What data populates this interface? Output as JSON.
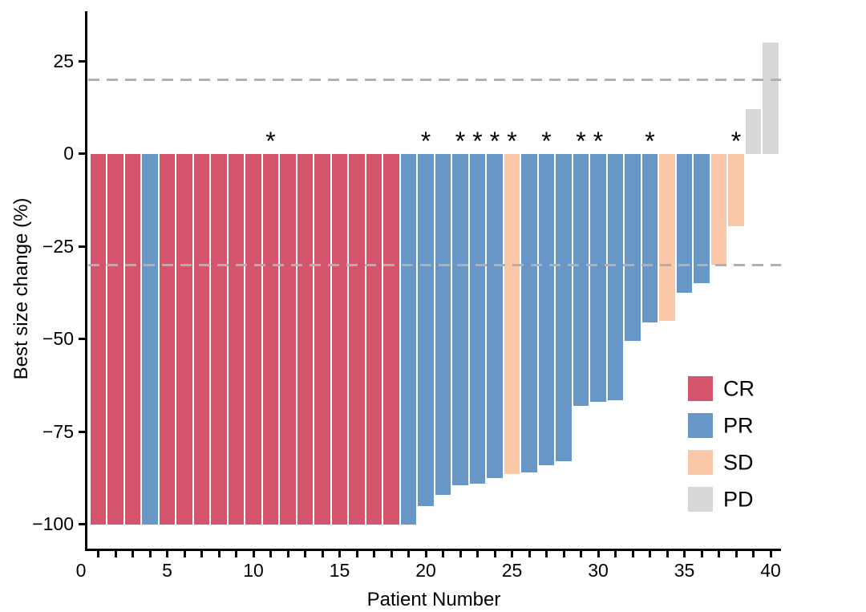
{
  "figure": {
    "y_axis": {
      "title": "Best size change (%)",
      "ticks": [
        {
          "label": "25",
          "value": 25
        },
        {
          "label": "0",
          "value": 0
        },
        {
          "label": "−25",
          "value": -25
        },
        {
          "label": "−50",
          "value": -50
        },
        {
          "label": "−75",
          "value": -75
        },
        {
          "label": "−100",
          "value": -100
        }
      ]
    },
    "x_axis": {
      "title": "Patient Number",
      "labeled_ticks": [
        {
          "label": "0",
          "value": 0
        },
        {
          "label": "5",
          "value": 5
        },
        {
          "label": "10",
          "value": 10
        },
        {
          "label": "15",
          "value": 15
        },
        {
          "label": "20",
          "value": 20
        },
        {
          "label": "25",
          "value": 25
        },
        {
          "label": "30",
          "value": 30
        },
        {
          "label": "35",
          "value": 35
        },
        {
          "label": "40",
          "value": 40
        }
      ]
    },
    "legend": [
      {
        "key": "CR",
        "label": "CR",
        "color": "#d4546e"
      },
      {
        "key": "PR",
        "label": "PR",
        "color": "#6896c6"
      },
      {
        "key": "SD",
        "label": "SD",
        "color": "#f8c8a8"
      },
      {
        "key": "PD",
        "label": "PD",
        "color": "#d8d8d8"
      }
    ],
    "annotation_symbol": "*"
  },
  "chart_data": {
    "type": "bar",
    "title": "",
    "xlabel": "Patient Number",
    "ylabel": "Best size change (%)",
    "xlim": [
      0,
      41
    ],
    "ylim": [
      -108,
      38
    ],
    "grid": false,
    "legend_position": "inside-right",
    "reference_lines": [
      {
        "y": 20,
        "style": "dashed",
        "color": "#b0b0b0"
      },
      {
        "y": -30,
        "style": "dashed",
        "color": "#b0b0b0"
      }
    ],
    "colors": {
      "CR": "#d4546e",
      "PR": "#6896c6",
      "SD": "#f8c8a8",
      "PD": "#d8d8d8"
    },
    "starred_patients": [
      11,
      20,
      22,
      23,
      24,
      25,
      27,
      29,
      30,
      33,
      38
    ],
    "patients": [
      {
        "n": 1,
        "value": -100,
        "response": "CR",
        "star": false
      },
      {
        "n": 2,
        "value": -100,
        "response": "CR",
        "star": false
      },
      {
        "n": 3,
        "value": -100,
        "response": "CR",
        "star": false
      },
      {
        "n": 4,
        "value": -100,
        "response": "PR",
        "star": false
      },
      {
        "n": 5,
        "value": -100,
        "response": "CR",
        "star": false
      },
      {
        "n": 6,
        "value": -100,
        "response": "CR",
        "star": false
      },
      {
        "n": 7,
        "value": -100,
        "response": "CR",
        "star": false
      },
      {
        "n": 8,
        "value": -100,
        "response": "CR",
        "star": false
      },
      {
        "n": 9,
        "value": -100,
        "response": "CR",
        "star": false
      },
      {
        "n": 10,
        "value": -100,
        "response": "CR",
        "star": false
      },
      {
        "n": 11,
        "value": -100,
        "response": "CR",
        "star": true
      },
      {
        "n": 12,
        "value": -100,
        "response": "CR",
        "star": false
      },
      {
        "n": 13,
        "value": -100,
        "response": "CR",
        "star": false
      },
      {
        "n": 14,
        "value": -100,
        "response": "CR",
        "star": false
      },
      {
        "n": 15,
        "value": -100,
        "response": "CR",
        "star": false
      },
      {
        "n": 16,
        "value": -100,
        "response": "CR",
        "star": false
      },
      {
        "n": 17,
        "value": -100,
        "response": "CR",
        "star": false
      },
      {
        "n": 18,
        "value": -100,
        "response": "CR",
        "star": false
      },
      {
        "n": 19,
        "value": -100,
        "response": "PR",
        "star": false
      },
      {
        "n": 20,
        "value": -95,
        "response": "PR",
        "star": true
      },
      {
        "n": 21,
        "value": -92,
        "response": "PR",
        "star": false
      },
      {
        "n": 22,
        "value": -89.5,
        "response": "PR",
        "star": true
      },
      {
        "n": 23,
        "value": -89,
        "response": "PR",
        "star": true
      },
      {
        "n": 24,
        "value": -87.5,
        "response": "PR",
        "star": true
      },
      {
        "n": 25,
        "value": -86.5,
        "response": "SD",
        "star": true
      },
      {
        "n": 26,
        "value": -86,
        "response": "PR",
        "star": false
      },
      {
        "n": 27,
        "value": -84,
        "response": "PR",
        "star": true
      },
      {
        "n": 28,
        "value": -83,
        "response": "PR",
        "star": false
      },
      {
        "n": 29,
        "value": -68,
        "response": "PR",
        "star": true
      },
      {
        "n": 30,
        "value": -67,
        "response": "PR",
        "star": true
      },
      {
        "n": 31,
        "value": -66.5,
        "response": "PR",
        "star": false
      },
      {
        "n": 32,
        "value": -50.5,
        "response": "PR",
        "star": false
      },
      {
        "n": 33,
        "value": -45.5,
        "response": "PR",
        "star": true
      },
      {
        "n": 34,
        "value": -45,
        "response": "SD",
        "star": false
      },
      {
        "n": 35,
        "value": -37.5,
        "response": "PR",
        "star": false
      },
      {
        "n": 36,
        "value": -35,
        "response": "PR",
        "star": false
      },
      {
        "n": 37,
        "value": -30,
        "response": "SD",
        "star": false
      },
      {
        "n": 38,
        "value": -19.5,
        "response": "SD",
        "star": true
      },
      {
        "n": 39,
        "value": 12,
        "response": "PD",
        "star": false
      },
      {
        "n": 40,
        "value": 30,
        "response": "PD",
        "star": false
      }
    ]
  }
}
